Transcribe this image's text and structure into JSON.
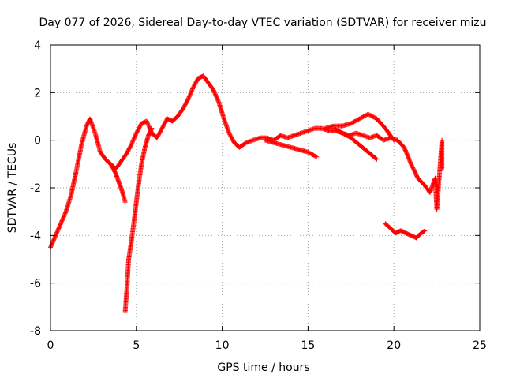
{
  "chart_data": {
    "type": "scatter",
    "title": "Day 077 of 2026, Sidereal Day-to-day VTEC variation (SDTVAR) for receiver mizu",
    "xlabel": "GPS time / hours",
    "ylabel": "SDTVAR / TECUs",
    "xlim": [
      0,
      25
    ],
    "ylim": [
      -8,
      4
    ],
    "xticks": [
      "0",
      "5",
      "10",
      "15",
      "20",
      "25"
    ],
    "yticks": [
      "-8",
      "-6",
      "-4",
      "-2",
      "0",
      "2",
      "4"
    ],
    "grid": true,
    "marker": "+",
    "series_color": "#ff0000",
    "series": [
      {
        "name": "main-track",
        "x": [
          0.0,
          0.3,
          0.6,
          0.9,
          1.2,
          1.5,
          1.8,
          2.1,
          2.3,
          2.6,
          2.9,
          3.2,
          3.5,
          3.8,
          4.1,
          4.4,
          4.7,
          5.0,
          5.3,
          5.6,
          5.9,
          6.2,
          6.5,
          6.8,
          7.1,
          7.4,
          7.7,
          8.0,
          8.3,
          8.6,
          8.9,
          9.2,
          9.5,
          9.8,
          10.1,
          10.4,
          10.7,
          11.0,
          11.4,
          11.8,
          12.2,
          12.6,
          13.0,
          13.4,
          13.8,
          14.2,
          14.6,
          15.0,
          15.4,
          15.8,
          16.2,
          16.6,
          17.0,
          17.4,
          17.8,
          18.2,
          18.6,
          19.0,
          19.4,
          19.8,
          20.2,
          20.6,
          21.0,
          21.4,
          21.8,
          22.1,
          22.4
        ],
        "y": [
          -4.5,
          -4.0,
          -3.5,
          -3.0,
          -2.3,
          -1.3,
          -0.2,
          0.6,
          0.9,
          0.3,
          -0.5,
          -0.8,
          -1.0,
          -1.2,
          -0.9,
          -0.6,
          -0.2,
          0.3,
          0.7,
          0.8,
          0.3,
          0.1,
          0.5,
          0.9,
          0.8,
          1.0,
          1.3,
          1.7,
          2.2,
          2.6,
          2.7,
          2.4,
          2.1,
          1.6,
          0.9,
          0.3,
          -0.1,
          -0.3,
          -0.1,
          0.0,
          0.1,
          0.1,
          0.0,
          0.2,
          0.1,
          0.2,
          0.3,
          0.4,
          0.5,
          0.5,
          0.4,
          0.4,
          0.3,
          0.2,
          0.3,
          0.2,
          0.1,
          0.2,
          0.0,
          0.1,
          0.0,
          -0.3,
          -1.0,
          -1.6,
          -1.9,
          -2.2,
          -1.6
        ]
      },
      {
        "name": "upper-arc",
        "x": [
          16.0,
          16.5,
          17.0,
          17.5,
          18.0,
          18.5,
          19.0,
          19.5,
          20.0
        ],
        "y": [
          0.5,
          0.6,
          0.6,
          0.7,
          0.9,
          1.1,
          0.9,
          0.5,
          0.0
        ]
      },
      {
        "name": "lower-branch",
        "x": [
          12.5,
          13.0,
          13.5,
          14.0,
          14.5,
          15.0,
          15.5
        ],
        "y": [
          0.0,
          -0.1,
          -0.2,
          -0.3,
          -0.4,
          -0.5,
          -0.7
        ]
      },
      {
        "name": "descending-branch",
        "x": [
          16.5,
          17.0,
          17.5,
          18.0,
          18.5,
          19.0
        ],
        "y": [
          0.5,
          0.3,
          0.1,
          -0.2,
          -0.5,
          -0.8
        ]
      },
      {
        "name": "early-dip",
        "x": [
          3.5,
          3.8,
          4.0,
          4.2,
          4.35
        ],
        "y": [
          -1.0,
          -1.4,
          -1.8,
          -2.2,
          -2.6
        ]
      },
      {
        "name": "spike",
        "x": [
          4.35,
          4.45,
          4.55,
          4.7,
          4.9,
          5.1,
          5.3,
          5.5,
          5.7,
          5.9
        ],
        "y": [
          -7.2,
          -6.2,
          -5.0,
          -4.3,
          -3.2,
          -2.0,
          -1.0,
          -0.3,
          0.2,
          0.5
        ]
      },
      {
        "name": "isolated-low",
        "x": [
          19.5,
          19.8,
          20.1,
          20.4,
          20.7,
          21.0,
          21.3,
          21.6,
          21.8
        ],
        "y": [
          -3.5,
          -3.7,
          -3.9,
          -3.8,
          -3.9,
          -4.0,
          -4.1,
          -3.9,
          -3.8
        ]
      },
      {
        "name": "end-points",
        "x": [
          22.4,
          22.5,
          22.8,
          22.8,
          22.8
        ],
        "y": [
          -1.6,
          -2.9,
          0.0,
          -0.5,
          -1.2
        ]
      }
    ]
  }
}
